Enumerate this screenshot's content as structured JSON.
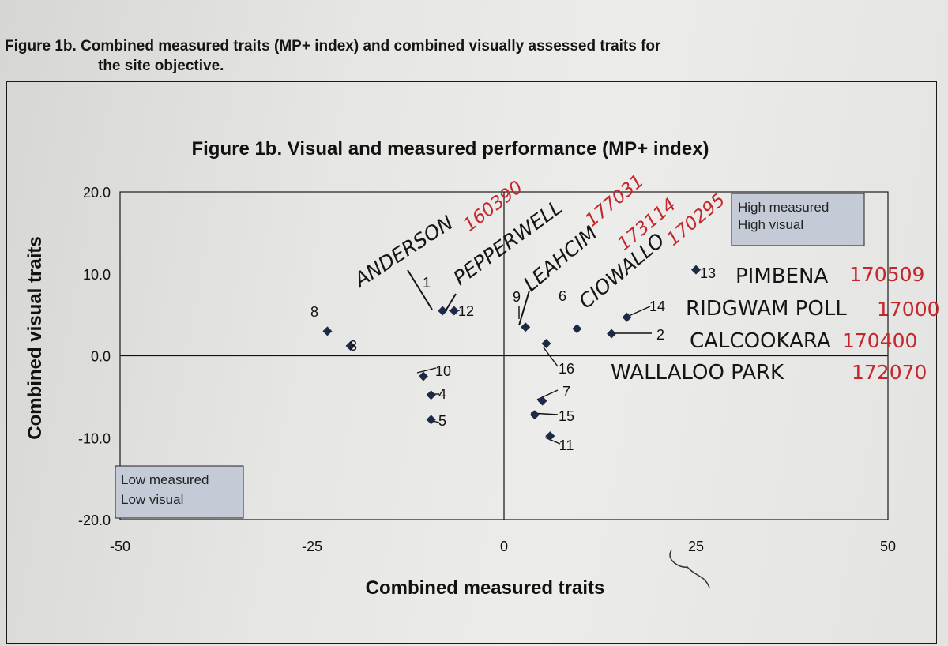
{
  "document": {
    "heading_line1": "Figure 1b. Combined measured traits (MP+ index) and combined visually assessed traits for",
    "heading_line2": "the site objective."
  },
  "chart_data": {
    "type": "scatter",
    "title": "Figure 1b.  Visual and measured performance (MP+ index)",
    "xlabel": "Combined measured traits",
    "ylabel": "Combined visual traits",
    "xlim": [
      -50,
      50
    ],
    "ylim": [
      -20,
      20
    ],
    "x_ticks": [
      -50,
      -25,
      0,
      25,
      50
    ],
    "x_tick_labels": [
      "-50",
      "-25",
      "0",
      "25",
      "50"
    ],
    "y_ticks": [
      20,
      10,
      0,
      -10,
      -20
    ],
    "y_tick_labels": [
      "20.0",
      "10.0",
      "0.0",
      "-10.0",
      "-20.0"
    ],
    "grid": false,
    "quadrant_labels": {
      "top_right": [
        "High measured",
        "High visual"
      ],
      "bottom_left": [
        "Low measured",
        "Low visual"
      ]
    },
    "marker_color": "#1e2a44",
    "points": [
      {
        "label": "1",
        "x": -8,
        "y": 5.5
      },
      {
        "label": "2",
        "x": 14,
        "y": 2.7
      },
      {
        "label": "3",
        "x": -20,
        "y": 1.2
      },
      {
        "label": "4",
        "x": -9.5,
        "y": -4.8
      },
      {
        "label": "5",
        "x": -9.5,
        "y": -7.8
      },
      {
        "label": "6",
        "x": 9.5,
        "y": 3.3
      },
      {
        "label": "7",
        "x": 5,
        "y": -5.5
      },
      {
        "label": "8",
        "x": -23,
        "y": 3
      },
      {
        "label": "9",
        "x": 2.8,
        "y": 3.5
      },
      {
        "label": "10",
        "x": -10.5,
        "y": -2.5
      },
      {
        "label": "11",
        "x": 6,
        "y": -9.8
      },
      {
        "label": "12",
        "x": -6.5,
        "y": 5.5
      },
      {
        "label": "13",
        "x": 25,
        "y": 10.5
      },
      {
        "label": "14",
        "x": 16,
        "y": 4.7
      },
      {
        "label": "15",
        "x": 4,
        "y": -7.2
      },
      {
        "label": "16",
        "x": 5.5,
        "y": 1.5
      }
    ]
  },
  "annotations": {
    "handwritten_names": [
      "ANDERSON",
      "PEPPERWELL",
      "LEAHCIM",
      "CIOWALLO",
      "PIMBENA",
      "RIDGWAM POLL",
      "CALCOOKARA",
      "WALLALOO PARK"
    ],
    "handwritten_numbers": [
      "160390",
      "177031",
      "173114",
      "170295",
      "170509",
      "17000",
      "170400",
      "172070"
    ],
    "ink_black": "#151515",
    "ink_red": "#c4262b"
  }
}
